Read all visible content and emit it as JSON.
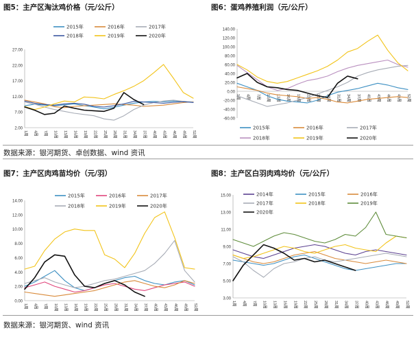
{
  "source_top": "数据来源：银河期货、卓创数据、wind 资讯",
  "source_bottom": "数据来源：银河期货、wind 资讯",
  "chart_data": [
    {
      "type": "line",
      "title": "图5：主产区淘汰鸡价格（元/公斤）",
      "x": [
        "1周",
        "4周",
        "7周",
        "10周",
        "13周",
        "16周",
        "19周",
        "22周",
        "25周",
        "28周",
        "31周",
        "34周",
        "37周",
        "40周",
        "43周",
        "46周",
        "49周",
        "52周"
      ],
      "ylim": [
        2,
        27
      ],
      "yticks": [
        "2.00",
        "7.00",
        "12.00",
        "17.00",
        "22.00",
        "27.00"
      ],
      "legend": "top",
      "grid": false,
      "series": [
        {
          "name": "2015年",
          "color": "#3c8fc2",
          "values": [
            9.0,
            9.5,
            9.2,
            9.0,
            9.3,
            9.6,
            9.0,
            8.6,
            8.0,
            8.5,
            9.2,
            9.8,
            10.2,
            10.4,
            10.3,
            10.5,
            10.4,
            10.2
          ]
        },
        {
          "name": "2016年",
          "color": "#d98a3a",
          "values": [
            10.8,
            10.2,
            9.6,
            8.7,
            8.4,
            8.8,
            9.0,
            9.2,
            9.4,
            9.6,
            9.4,
            9.2,
            8.8,
            9.0,
            9.2,
            9.6,
            10.0,
            10.3
          ]
        },
        {
          "name": "2017年",
          "color": "#a6abb5",
          "values": [
            10.2,
            9.5,
            8.6,
            7.8,
            7.2,
            6.6,
            6.2,
            5.8,
            4.8,
            4.4,
            5.8,
            7.8,
            9.2,
            10.0,
            10.5,
            10.8,
            10.4,
            10.2
          ]
        },
        {
          "name": "2018年",
          "color": "#3a57a0",
          "values": [
            10.5,
            9.8,
            9.4,
            9.2,
            9.6,
            9.8,
            9.5,
            8.8,
            8.6,
            9.0,
            9.6,
            10.4,
            10.2,
            10.0,
            9.8,
            10.1,
            10.3,
            10.0
          ]
        },
        {
          "name": "2019年",
          "color": "#f2c318",
          "values": [
            8.8,
            7.8,
            8.6,
            9.6,
            10.5,
            10.2,
            11.8,
            11.6,
            11.2,
            12.6,
            13.8,
            15.2,
            17.0,
            19.5,
            22.2,
            17.8,
            13.2,
            11.4
          ]
        },
        {
          "name": "2020年",
          "color": "#111111",
          "values": [
            8.6,
            7.6,
            6.2,
            6.6,
            8.9,
            8.2,
            7.6,
            7.4,
            7.2,
            8.2,
            13.2,
            11.0,
            9.4,
            null,
            null,
            null,
            null,
            null
          ]
        }
      ]
    },
    {
      "type": "line",
      "title": "图6：蛋鸡养殖利润（元/公斤）",
      "x": [
        "1周",
        "4周",
        "7周",
        "10周",
        "13周",
        "16周",
        "19周",
        "22周",
        "25周",
        "28周",
        "31周",
        "34周",
        "37周",
        "40周",
        "43周",
        "46周",
        "49周",
        "52周"
      ],
      "ylim": [
        -60,
        140
      ],
      "yticks": [
        "-60.00",
        "-40.00",
        "-20.00",
        "0.00",
        "20.00",
        "40.00",
        "60.00",
        "80.00",
        "100.00",
        "120.00",
        "140.00"
      ],
      "legend": "bottom",
      "grid": false,
      "series": [
        {
          "name": "2015年",
          "color": "#3c8fc2",
          "values": [
            18,
            10,
            2,
            -10,
            -18,
            -22,
            -24,
            -26,
            -20,
            -10,
            -2,
            2,
            6,
            12,
            18,
            14,
            8,
            4
          ]
        },
        {
          "name": "2016年",
          "color": "#d98a3a",
          "values": [
            10,
            6,
            2,
            -4,
            -8,
            -10,
            -12,
            -16,
            -14,
            -18,
            -24,
            -26,
            -22,
            -18,
            -16,
            -14,
            -12,
            -14
          ]
        },
        {
          "name": "2017年",
          "color": "#a6abb5",
          "values": [
            -10,
            -18,
            -26,
            -34,
            -30,
            -26,
            -20,
            -14,
            -6,
            2,
            10,
            20,
            34,
            42,
            48,
            52,
            56,
            58
          ]
        },
        {
          "name": "2018年",
          "color": "#b98fbf",
          "values": [
            58,
            42,
            26,
            10,
            2,
            6,
            16,
            24,
            28,
            34,
            44,
            52,
            58,
            62,
            66,
            70,
            60,
            54
          ]
        },
        {
          "name": "2019年",
          "color": "#f2c318",
          "values": [
            60,
            48,
            32,
            22,
            18,
            22,
            30,
            38,
            46,
            56,
            70,
            88,
            96,
            112,
            126,
            92,
            64,
            46
          ]
        },
        {
          "name": "2020年",
          "color": "#111111",
          "values": [
            30,
            40,
            20,
            10,
            8,
            4,
            2,
            -4,
            -10,
            -14,
            18,
            34,
            28,
            null,
            null,
            null,
            null,
            null
          ]
        }
      ]
    },
    {
      "type": "line",
      "title": "图7：主产区肉鸡苗均价（元/羽）",
      "x": [
        "1周",
        "4周",
        "7周",
        "10周",
        "13周",
        "16周",
        "19周",
        "22周",
        "25周",
        "28周",
        "31周",
        "34周",
        "37周",
        "40周",
        "43周",
        "46周",
        "49周",
        "52周"
      ],
      "ylim": [
        0,
        14
      ],
      "yticks": [
        "0.00",
        "2.00",
        "4.00",
        "6.00",
        "8.00",
        "10.00",
        "12.00",
        "14.00"
      ],
      "legend": "top",
      "grid": false,
      "series": [
        {
          "name": "2015年",
          "color": "#3c8fc2",
          "values": [
            2.0,
            2.6,
            3.4,
            4.2,
            2.8,
            1.8,
            1.4,
            1.8,
            2.4,
            2.8,
            3.2,
            3.4,
            2.8,
            2.4,
            2.2,
            2.6,
            2.8,
            2.2
          ]
        },
        {
          "name": "2016年",
          "color": "#e0457b",
          "values": [
            1.8,
            2.2,
            2.6,
            2.0,
            1.6,
            1.2,
            1.4,
            1.8,
            2.2,
            2.4,
            2.0,
            1.6,
            1.4,
            1.8,
            2.2,
            2.4,
            2.6,
            2.0
          ]
        },
        {
          "name": "2017年",
          "color": "#d98a3a",
          "values": [
            1.2,
            1.0,
            0.8,
            0.6,
            0.8,
            1.0,
            1.2,
            1.4,
            1.8,
            2.2,
            2.6,
            2.8,
            2.4,
            2.0,
            1.8,
            2.2,
            2.8,
            2.4
          ]
        },
        {
          "name": "2018年",
          "color": "#a6abb5",
          "values": [
            2.4,
            2.8,
            3.2,
            2.6,
            2.2,
            1.8,
            2.0,
            2.4,
            2.8,
            3.0,
            3.4,
            3.8,
            4.2,
            5.2,
            6.6,
            8.4,
            4.2,
            2.6
          ]
        },
        {
          "name": "2019年",
          "color": "#f2c318",
          "values": [
            4.4,
            4.8,
            7.0,
            8.6,
            9.6,
            10.0,
            9.8,
            9.8,
            6.4,
            5.8,
            4.6,
            6.6,
            9.4,
            11.6,
            12.4,
            8.8,
            4.6,
            4.4
          ]
        },
        {
          "name": "2020年",
          "color": "#111111",
          "values": [
            1.6,
            3.2,
            5.4,
            6.4,
            6.2,
            3.6,
            2.0,
            1.8,
            2.4,
            2.8,
            2.2,
            1.2,
            0.6,
            null,
            null,
            null,
            null,
            null
          ]
        }
      ]
    },
    {
      "type": "line",
      "title": "图8：主产区白羽肉鸡均价（元/公斤）",
      "x": [
        "1周",
        "4周",
        "7周",
        "10周",
        "13周",
        "16周",
        "19周",
        "22周",
        "25周",
        "28周",
        "31周",
        "34周",
        "37周",
        "40周",
        "43周",
        "46周",
        "49周",
        "52周"
      ],
      "ylim": [
        3,
        15
      ],
      "yticks": [
        "3.00",
        "5.00",
        "7.00",
        "9.00",
        "11.00",
        "13.00",
        "15.00"
      ],
      "legend": "top",
      "grid": false,
      "series": [
        {
          "name": "2014年",
          "color": "#5a3f8f",
          "values": [
            8.6,
            8.2,
            7.8,
            7.6,
            8.0,
            8.4,
            8.8,
            9.0,
            9.2,
            9.0,
            8.6,
            8.2,
            8.0,
            8.4,
            8.6,
            8.4,
            8.2,
            8.0
          ]
        },
        {
          "name": "2015年",
          "color": "#3c8fc2",
          "values": [
            7.4,
            7.2,
            7.0,
            6.8,
            7.0,
            7.4,
            7.8,
            8.0,
            7.6,
            7.2,
            6.8,
            6.4,
            6.2,
            6.4,
            6.6,
            6.8,
            7.0,
            7.0
          ]
        },
        {
          "name": "2016年",
          "color": "#d98a3a",
          "values": [
            8.0,
            7.6,
            7.2,
            7.0,
            7.2,
            7.6,
            8.0,
            8.2,
            8.4,
            8.0,
            7.6,
            7.4,
            7.2,
            7.0,
            7.2,
            7.4,
            7.2,
            7.0
          ]
        },
        {
          "name": "2017年",
          "color": "#a6abb5",
          "values": [
            7.8,
            7.2,
            6.2,
            5.4,
            6.4,
            7.0,
            7.2,
            7.6,
            7.8,
            7.4,
            7.2,
            7.4,
            7.6,
            7.8,
            8.0,
            8.2,
            8.0,
            7.8
          ]
        },
        {
          "name": "2018年",
          "color": "#f2c318",
          "values": [
            8.0,
            7.6,
            7.8,
            8.2,
            8.6,
            9.0,
            8.8,
            8.4,
            8.2,
            8.6,
            9.0,
            9.2,
            8.8,
            8.6,
            8.4,
            9.4,
            10.2,
            10.0
          ]
        },
        {
          "name": "2019年",
          "color": "#5e8c3a",
          "values": [
            9.8,
            9.4,
            9.0,
            9.6,
            10.2,
            10.6,
            10.4,
            10.0,
            9.6,
            9.4,
            9.8,
            10.4,
            10.2,
            11.2,
            13.0,
            10.4,
            10.2,
            10.0
          ]
        },
        {
          "name": "2020年",
          "color": "#111111",
          "values": [
            5.0,
            6.8,
            8.0,
            9.2,
            8.8,
            8.2,
            7.4,
            7.6,
            7.2,
            7.4,
            7.0,
            6.6,
            6.2,
            null,
            null,
            null,
            null,
            null
          ]
        }
      ]
    }
  ]
}
